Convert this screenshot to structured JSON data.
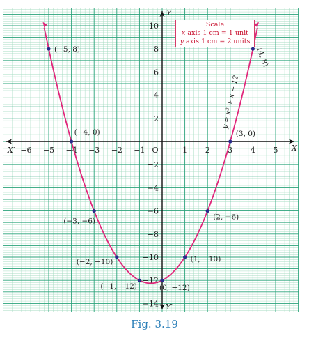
{
  "chart_data": {
    "type": "line",
    "equation": "y = x² + x − 12",
    "x_range": [
      -7,
      6
    ],
    "y_range": [
      -15,
      11
    ],
    "x_ticks": [
      -6,
      -5,
      -4,
      -3,
      -2,
      -1,
      0,
      1,
      2,
      3,
      4,
      5
    ],
    "y_ticks": [
      -14,
      -12,
      -10,
      -8,
      -6,
      -4,
      -2,
      2,
      4,
      6,
      8,
      10
    ],
    "origin_label": "O",
    "axis_labels": {
      "x_pos": "X",
      "x_neg": "X′",
      "y_pos": "Y",
      "y_neg": "Y′"
    },
    "points": [
      {
        "x": -5,
        "y": 8,
        "label": "(−5, 8)"
      },
      {
        "x": -4,
        "y": 0,
        "label": "(−4, 0)"
      },
      {
        "x": -3,
        "y": -6,
        "label": "(−3, −6)"
      },
      {
        "x": -2,
        "y": -10,
        "label": "(−2, −10)"
      },
      {
        "x": -1,
        "y": -12,
        "label": "(−1, −12)"
      },
      {
        "x": 0,
        "y": -12,
        "label": "(0, −12)"
      },
      {
        "x": 1,
        "y": -10,
        "label": "(1, −10)"
      },
      {
        "x": 2,
        "y": -6,
        "label": "(2, −6)"
      },
      {
        "x": 3,
        "y": 0,
        "label": "(3, 0)"
      },
      {
        "x": 4,
        "y": 8,
        "label": "(4, 8)"
      }
    ],
    "grid": true,
    "colors": {
      "curve": "#e0267a",
      "grid_major": "#2aa37a",
      "grid_minor": "#a6dcc2",
      "point": "#2a2a8a"
    }
  },
  "scale": {
    "title": "Scale",
    "x_line": {
      "var": "x",
      "text": " axis 1 cm = 1 unit"
    },
    "y_line": {
      "var": "y",
      "text": " axis 1 cm = 2 units"
    }
  },
  "caption": "Fig. 3.19"
}
